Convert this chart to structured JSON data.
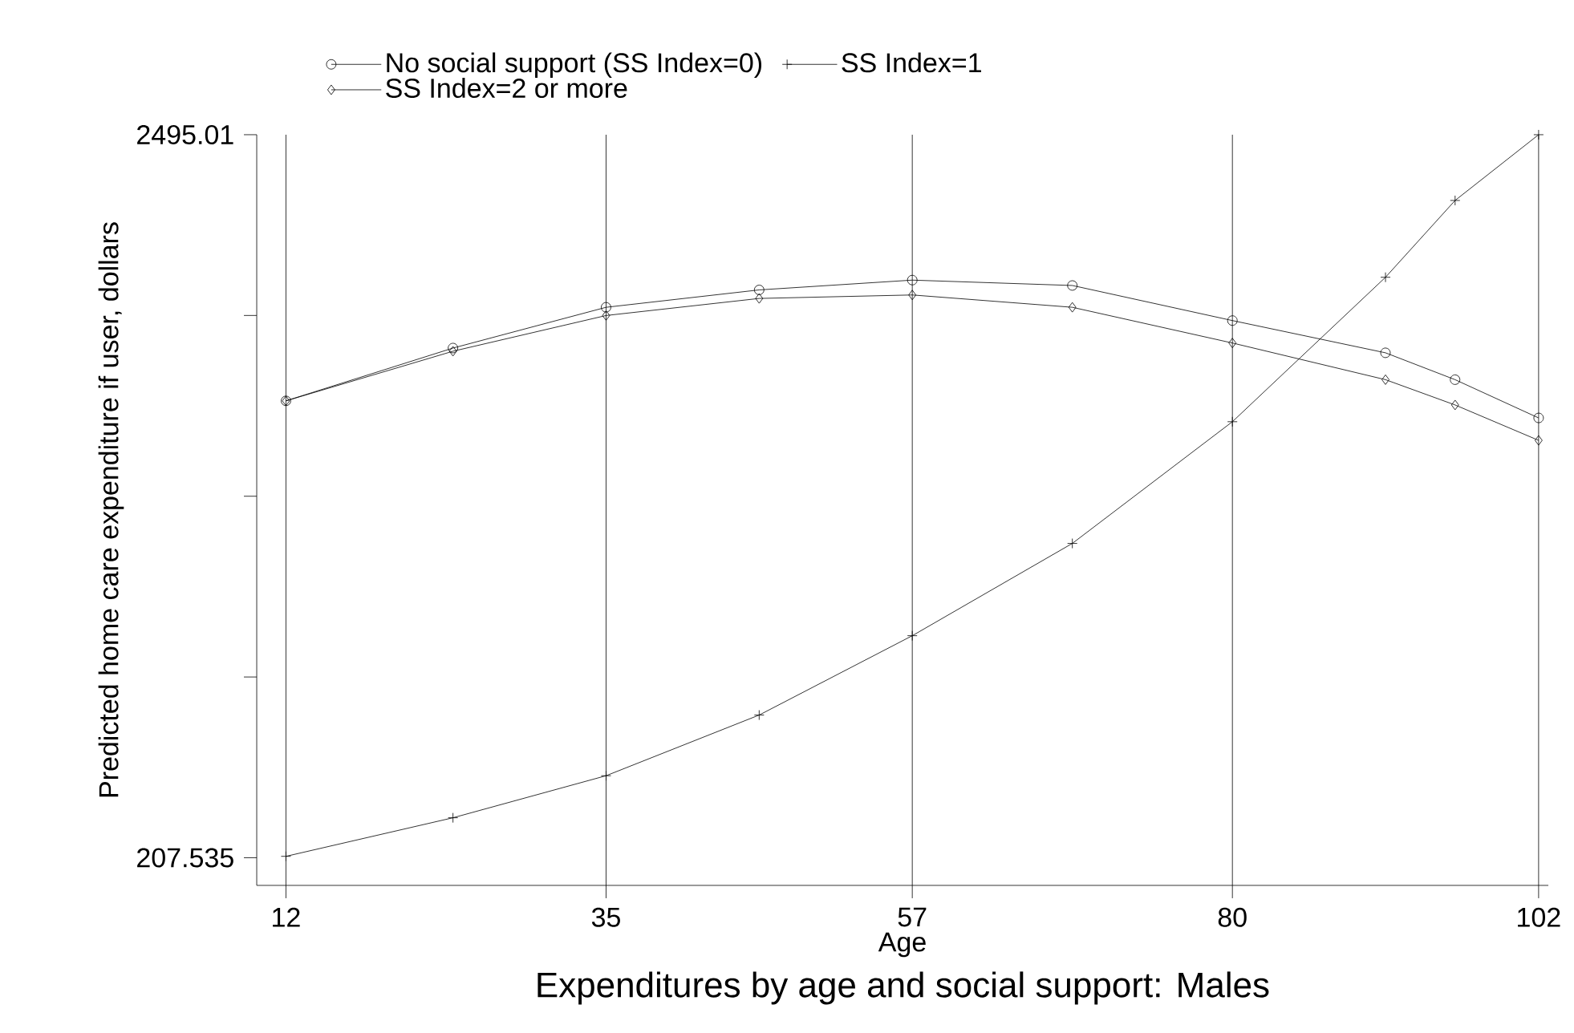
{
  "chart_data": {
    "type": "line",
    "title": "Expenditures by age and social support: Males",
    "xlabel": "Age",
    "ylabel": "Predicted home care expenditure if user, dollars",
    "x": [
      12,
      24,
      35,
      46,
      57,
      68.5,
      80,
      91,
      96,
      102
    ],
    "series": [
      {
        "name": "No social support (SS Index=0)",
        "color": "#000000",
        "marker": "circle",
        "values": [
          1653,
          1820,
          1949,
          2004,
          2035,
          2018,
          1907,
          1805,
          1720,
          1599
        ]
      },
      {
        "name": "SS Index=1",
        "color": "#000000",
        "marker": "cross",
        "values": [
          212,
          334,
          467,
          659,
          910,
          1202,
          1587,
          2044,
          2287,
          2495.01
        ]
      },
      {
        "name": "SS Index=2 or more",
        "color": "#000000",
        "marker": "diamond",
        "values": [
          1653,
          1810,
          1923,
          1977,
          1988,
          1949,
          1836,
          1720,
          1640,
          1528
        ]
      }
    ],
    "xlim": [
      9.9,
      102.7
    ],
    "ylim": [
      120,
      2495.01
    ],
    "xticks": [
      12,
      35,
      57,
      80,
      102
    ],
    "yticks": [
      207.535,
      {
        "value": 779.404,
        "label": null
      },
      {
        "value": 1351.27,
        "label": null
      },
      {
        "value": 1923.14,
        "label": null
      },
      2495.01
    ],
    "grid": "x",
    "legend": "top",
    "line_style": "solid"
  }
}
